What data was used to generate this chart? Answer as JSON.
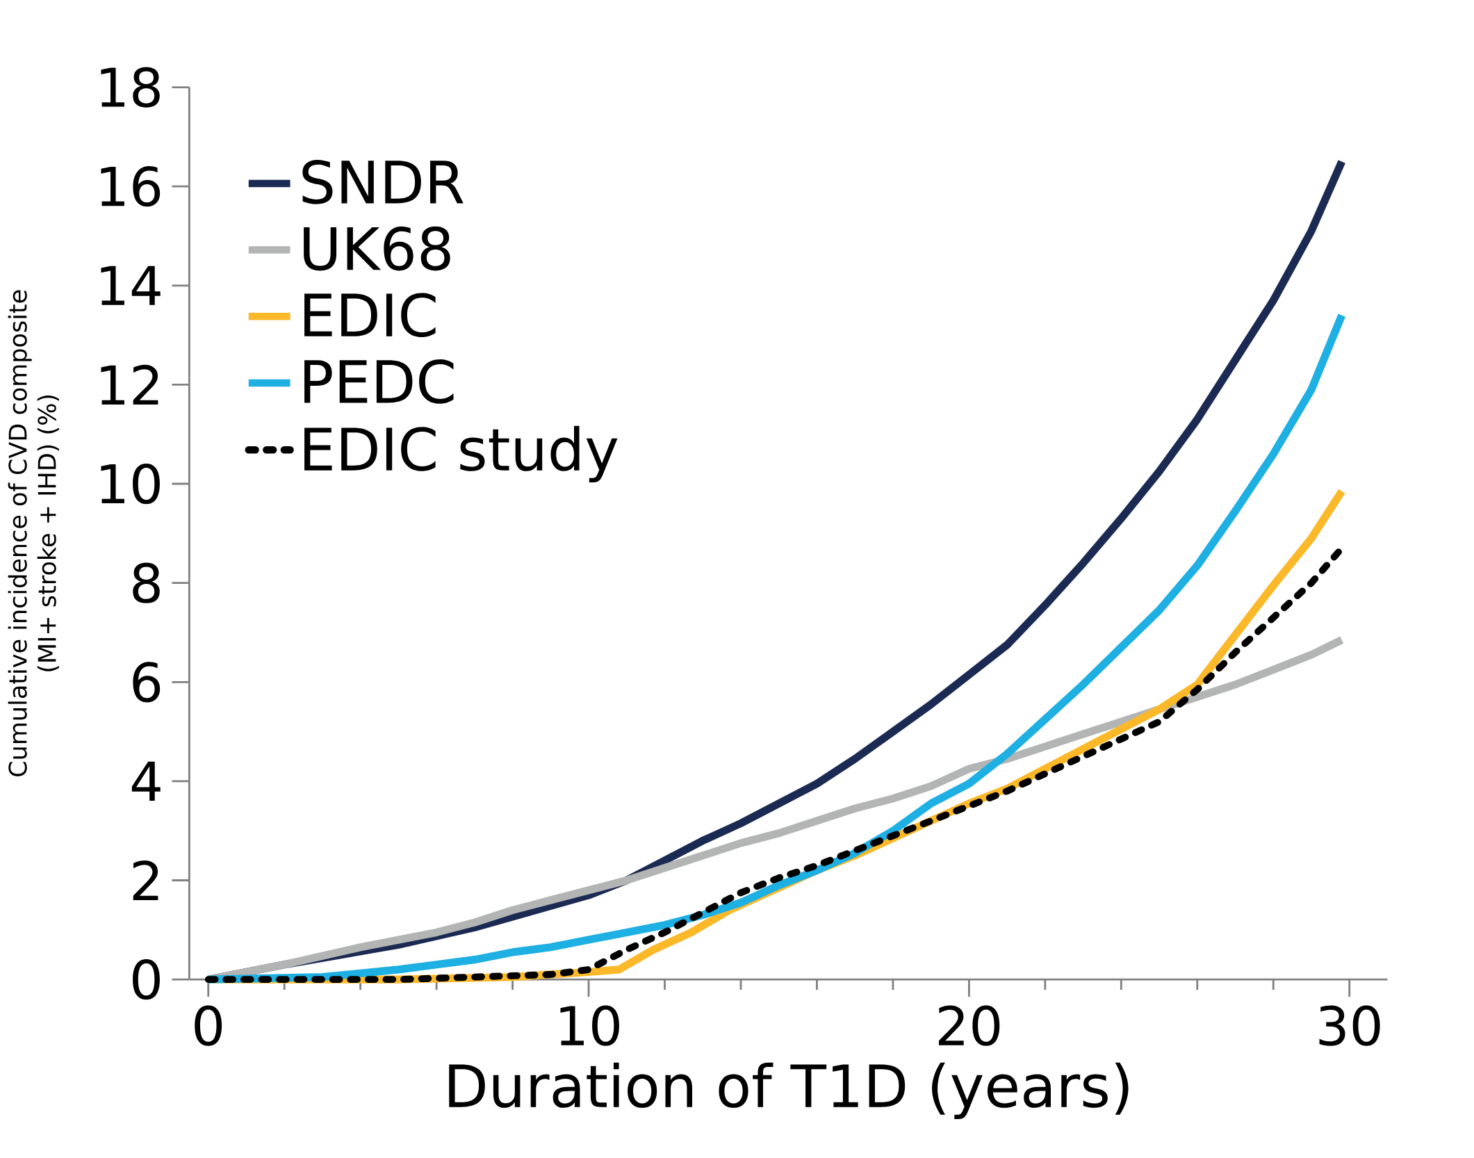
{
  "chart_data": {
    "type": "line",
    "xlabel": "Duration of  T1D (years)",
    "ylabel": "Cumulative incidence of CVD composite\n(MI+ stroke + IHD) (%)",
    "xlim": [
      -0.5,
      31
    ],
    "xticks": [
      0,
      10,
      20,
      30
    ],
    "ylim": [
      0,
      18
    ],
    "yticks": [
      0,
      2,
      4,
      6,
      8,
      10,
      12,
      14,
      16,
      18
    ],
    "legend": "top left",
    "series": [
      {
        "name": "SNDR",
        "color": "#1b2a52",
        "x": [
          0,
          2,
          5,
          7,
          10,
          11,
          12,
          13,
          14,
          15,
          16,
          17,
          18,
          19,
          20,
          21,
          22,
          23,
          24,
          25,
          26,
          27,
          28,
          29,
          29.8
        ],
        "values": [
          0,
          0.3,
          0.7,
          1.05,
          1.7,
          2.0,
          2.4,
          2.8,
          3.15,
          3.55,
          3.95,
          4.45,
          5.0,
          5.55,
          6.15,
          6.75,
          7.55,
          8.4,
          9.3,
          10.25,
          11.3,
          12.5,
          13.7,
          15.1,
          16.5
        ]
      },
      {
        "name": "UK68",
        "color": "#b3b5b5",
        "x": [
          0,
          2,
          4,
          6,
          7,
          8,
          9,
          10,
          11,
          12,
          13,
          14,
          15,
          16,
          17,
          18,
          19,
          20,
          21,
          22,
          23,
          24,
          25,
          26,
          27,
          28,
          29,
          29.8
        ],
        "values": [
          0,
          0.3,
          0.65,
          0.95,
          1.15,
          1.4,
          1.6,
          1.8,
          2.0,
          2.25,
          2.5,
          2.75,
          2.95,
          3.2,
          3.45,
          3.65,
          3.9,
          4.25,
          4.45,
          4.7,
          4.95,
          5.2,
          5.45,
          5.7,
          5.95,
          6.25,
          6.55,
          6.85
        ]
      },
      {
        "name": "EDIC",
        "color": "#fbb829",
        "x": [
          0,
          5,
          8,
          10,
          10.8,
          11.7,
          12.7,
          13.7,
          15,
          16,
          17,
          18,
          19,
          20,
          21,
          22,
          23,
          24,
          25,
          26,
          27,
          28,
          29,
          29.8
        ],
        "values": [
          0,
          0,
          0.05,
          0.15,
          0.2,
          0.6,
          0.95,
          1.4,
          1.85,
          2.2,
          2.5,
          2.85,
          3.2,
          3.55,
          3.85,
          4.25,
          4.65,
          5.05,
          5.45,
          5.95,
          6.95,
          7.95,
          8.9,
          9.85
        ]
      },
      {
        "name": "PEDC",
        "color": "#1eafe3",
        "x": [
          0,
          3,
          5,
          6,
          7,
          8,
          9,
          10,
          11,
          12,
          13,
          14,
          15,
          16,
          17,
          18,
          19,
          20,
          21,
          22,
          23,
          24,
          25,
          26,
          27,
          28,
          29,
          29.8
        ],
        "values": [
          0,
          0.05,
          0.2,
          0.3,
          0.4,
          0.55,
          0.65,
          0.8,
          0.95,
          1.1,
          1.3,
          1.55,
          1.9,
          2.2,
          2.55,
          3.0,
          3.55,
          3.95,
          4.55,
          5.25,
          5.95,
          6.7,
          7.45,
          8.35,
          9.45,
          10.6,
          11.9,
          13.4
        ]
      },
      {
        "name": "EDIC study",
        "color": "#000000",
        "line_style": "dotted",
        "x": [
          0,
          5,
          7,
          9,
          10,
          11,
          12,
          13,
          14,
          15,
          16,
          17,
          18,
          19,
          20,
          21,
          22,
          23,
          24,
          25,
          26,
          27,
          28,
          29,
          29.8
        ],
        "values": [
          0,
          0,
          0.05,
          0.1,
          0.2,
          0.6,
          0.95,
          1.35,
          1.75,
          2.05,
          2.3,
          2.6,
          2.9,
          3.2,
          3.5,
          3.8,
          4.15,
          4.5,
          4.85,
          5.2,
          5.85,
          6.6,
          7.3,
          8.0,
          8.7
        ]
      }
    ]
  }
}
